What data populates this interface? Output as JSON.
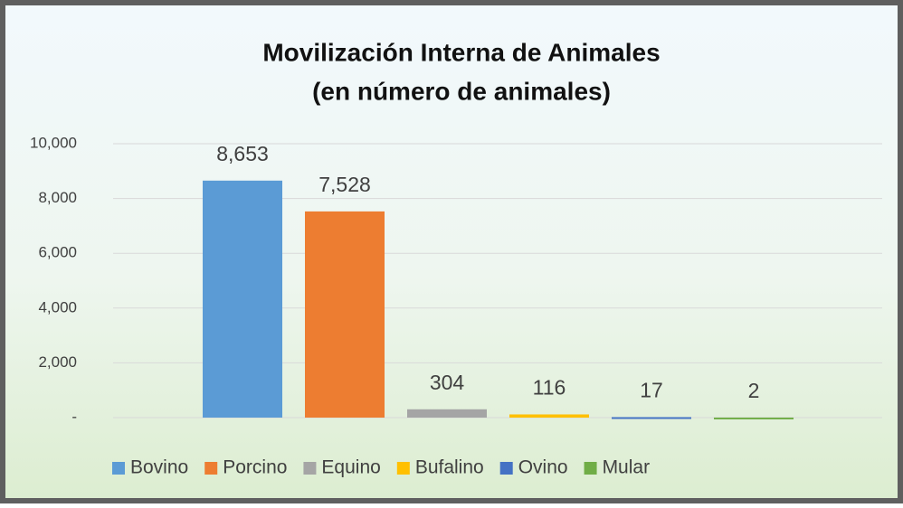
{
  "chart_data": {
    "type": "bar",
    "title": [
      "Movilización Interna de Animales",
      "(en número de animales)"
    ],
    "series": [
      {
        "name": "Bovino",
        "color": "#5b9bd5",
        "values": [
          8653
        ],
        "value_labels": [
          "8,653"
        ]
      },
      {
        "name": "Porcino",
        "color": "#ed7d31",
        "values": [
          7528
        ],
        "value_labels": [
          "7,528"
        ]
      },
      {
        "name": "Equino",
        "color": "#a5a5a5",
        "values": [
          304
        ]
      },
      {
        "name": "Bufalino",
        "color": "#ffc000",
        "values": [
          116
        ]
      },
      {
        "name": "Ovino",
        "color": "#4472c4",
        "values": [
          17
        ]
      },
      {
        "name": "Mular",
        "color": "#70ad47",
        "values": [
          2
        ]
      }
    ],
    "ylim": [
      0,
      10000
    ],
    "yticks": [
      {
        "value": 0,
        "label": "-"
      },
      {
        "value": 2000,
        "label": "2,000"
      },
      {
        "value": 4000,
        "label": "4,000"
      },
      {
        "value": 6000,
        "label": "6,000"
      },
      {
        "value": 8000,
        "label": "8,000"
      },
      {
        "value": 10000,
        "label": "10,000"
      }
    ],
    "grid": true,
    "legend": "bottom"
  }
}
